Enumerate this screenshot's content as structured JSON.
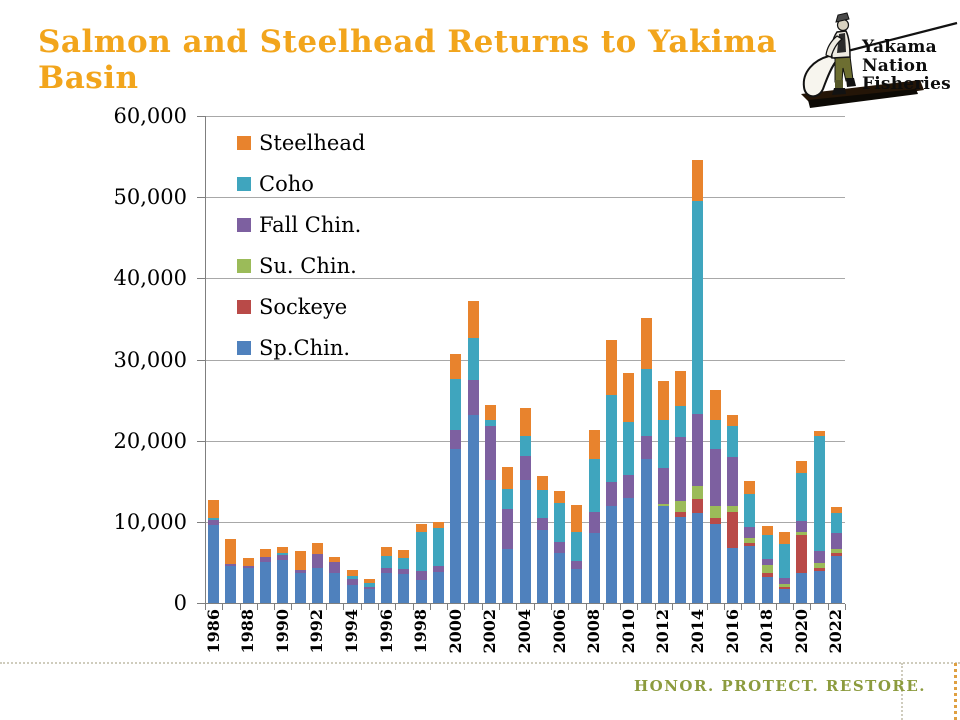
{
  "title": "Salmon and Steelhead Returns to Yakima Basin",
  "logo": {
    "line1": "Yakama",
    "line2": "Nation",
    "line3": "Fisheries"
  },
  "footer": {
    "motto": "HONOR. PROTECT. RESTORE."
  },
  "colors": {
    "title_gold": "#F2A51C",
    "axis_gray": "#7f7f7f",
    "gridline_gray": "#a8a8a8",
    "motto_olive": "#8C9B3E",
    "dotted_border": "#cfccbd",
    "dotted_border_orange": "#DFA041"
  },
  "chart_data": {
    "type": "bar",
    "stacked": true,
    "title": "",
    "xlabel": "",
    "ylabel": "",
    "ylim": [
      0,
      60000
    ],
    "ytick_interval": 10000,
    "ytick_labels": [
      "0",
      "10,000",
      "20,000",
      "30,000",
      "40,000",
      "50,000",
      "60,000"
    ],
    "grid": true,
    "legend_position": "top-left-inside",
    "legend": [
      "Steelhead",
      "Coho",
      "Fall Chin.",
      "Su. Chin.",
      "Sockeye",
      "Sp.Chin."
    ],
    "categories": [
      1986,
      1987,
      1988,
      1989,
      1990,
      1991,
      1992,
      1993,
      1994,
      1995,
      1996,
      1997,
      1998,
      1999,
      2000,
      2001,
      2002,
      2003,
      2004,
      2005,
      2006,
      2007,
      2008,
      2009,
      2010,
      2011,
      2012,
      2013,
      2014,
      2015,
      2016,
      2017,
      2018,
      2019,
      2020,
      2021,
      2022
    ],
    "xtick_label_every": 2,
    "series": [
      {
        "name": "Sp.Chin.",
        "color": "#4F81BD",
        "values": [
          9600,
          4500,
          4300,
          5000,
          5300,
          3700,
          4300,
          3700,
          2200,
          1700,
          3670,
          3600,
          2840,
          3790,
          19000,
          23200,
          15200,
          6670,
          15200,
          9000,
          6140,
          4200,
          8600,
          11890,
          12960,
          17740,
          11890,
          10580,
          11070,
          9750,
          6750,
          7040,
          3170,
          1700,
          3740,
          4000,
          5800
        ]
      },
      {
        "name": "Sockeye",
        "color": "#B94A48",
        "values": [
          0,
          0,
          0,
          0,
          0,
          0,
          0,
          0,
          0,
          0,
          0,
          0,
          0,
          0,
          0,
          0,
          0,
          0,
          0,
          0,
          0,
          0,
          0,
          0,
          0,
          0,
          0,
          570,
          1730,
          710,
          4400,
          400,
          570,
          300,
          4650,
          290,
          330
        ]
      },
      {
        "name": "Su. Chin.",
        "color": "#9BBB59",
        "values": [
          0,
          0,
          0,
          0,
          0,
          0,
          0,
          0,
          0,
          0,
          0,
          0,
          0,
          0,
          0,
          0,
          0,
          0,
          0,
          0,
          0,
          0,
          0,
          0,
          0,
          0,
          330,
          1360,
          1560,
          1520,
          830,
          550,
          950,
          400,
          410,
          620,
          490
        ]
      },
      {
        "name": "Fall Chin.",
        "color": "#7D60A0",
        "values": [
          600,
          300,
          250,
          650,
          650,
          400,
          1750,
          1300,
          800,
          300,
          600,
          550,
          1100,
          820,
          2260,
          4320,
          6580,
          4930,
          2880,
          1520,
          1430,
          1020,
          2670,
          2990,
          2860,
          2790,
          4410,
          7900,
          8930,
          6990,
          6010,
          1350,
          700,
          670,
          1360,
          1440,
          1980
        ]
      },
      {
        "name": "Coho",
        "color": "#3FA5BE",
        "values": [
          300,
          0,
          0,
          0,
          200,
          0,
          0,
          0,
          300,
          430,
          1500,
          1350,
          4780,
          4610,
          6380,
          5100,
          820,
          2470,
          2470,
          3420,
          4740,
          3580,
          6510,
          10800,
          6440,
          8240,
          5880,
          3910,
          26260,
          3540,
          3780,
          4120,
          3000,
          4200,
          5850,
          14280,
          2470
        ]
      },
      {
        "name": "Steelhead",
        "color": "#E8832D",
        "values": [
          2200,
          3100,
          1000,
          950,
          700,
          2250,
          1400,
          650,
          770,
          500,
          1100,
          1050,
          1030,
          780,
          3050,
          4530,
          1770,
          2640,
          3420,
          1730,
          1520,
          3300,
          3490,
          6670,
          6100,
          6380,
          4810,
          4240,
          5060,
          3790,
          1440,
          1520,
          1110,
          1520,
          1480,
          530,
          740
        ]
      }
    ]
  }
}
